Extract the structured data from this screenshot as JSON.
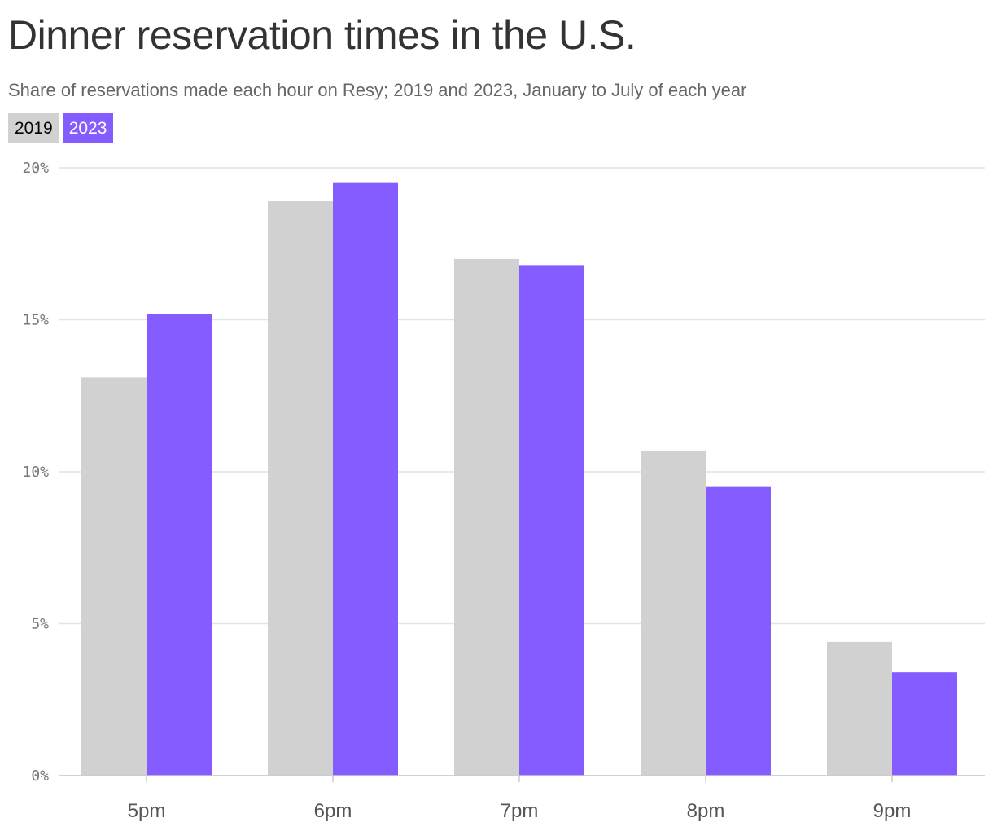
{
  "title": "Dinner reservation times in the U.S.",
  "subtitle": "Share of reservations made each hour on Resy; 2019 and 2023, January to July of each year",
  "legend": {
    "items": [
      "2019",
      "2023"
    ]
  },
  "colors": {
    "2019": "#d0d1d0",
    "2023": "#855cff",
    "grid": "#e3e3e3",
    "axis": "#cccccc"
  },
  "chart_data": {
    "type": "bar",
    "categories": [
      "5pm",
      "6pm",
      "7pm",
      "8pm",
      "9pm"
    ],
    "series": [
      {
        "name": "2019",
        "values": [
          13.1,
          18.9,
          17.0,
          10.7,
          4.4
        ]
      },
      {
        "name": "2023",
        "values": [
          15.2,
          19.5,
          16.8,
          9.5,
          3.4
        ]
      }
    ],
    "ylim": [
      0,
      20
    ],
    "yticks": [
      0,
      5,
      10,
      15,
      20
    ],
    "ytick_labels": [
      "0%",
      "5%",
      "10%",
      "15%",
      "20%"
    ],
    "grid": true,
    "legend_position": "top-left"
  }
}
